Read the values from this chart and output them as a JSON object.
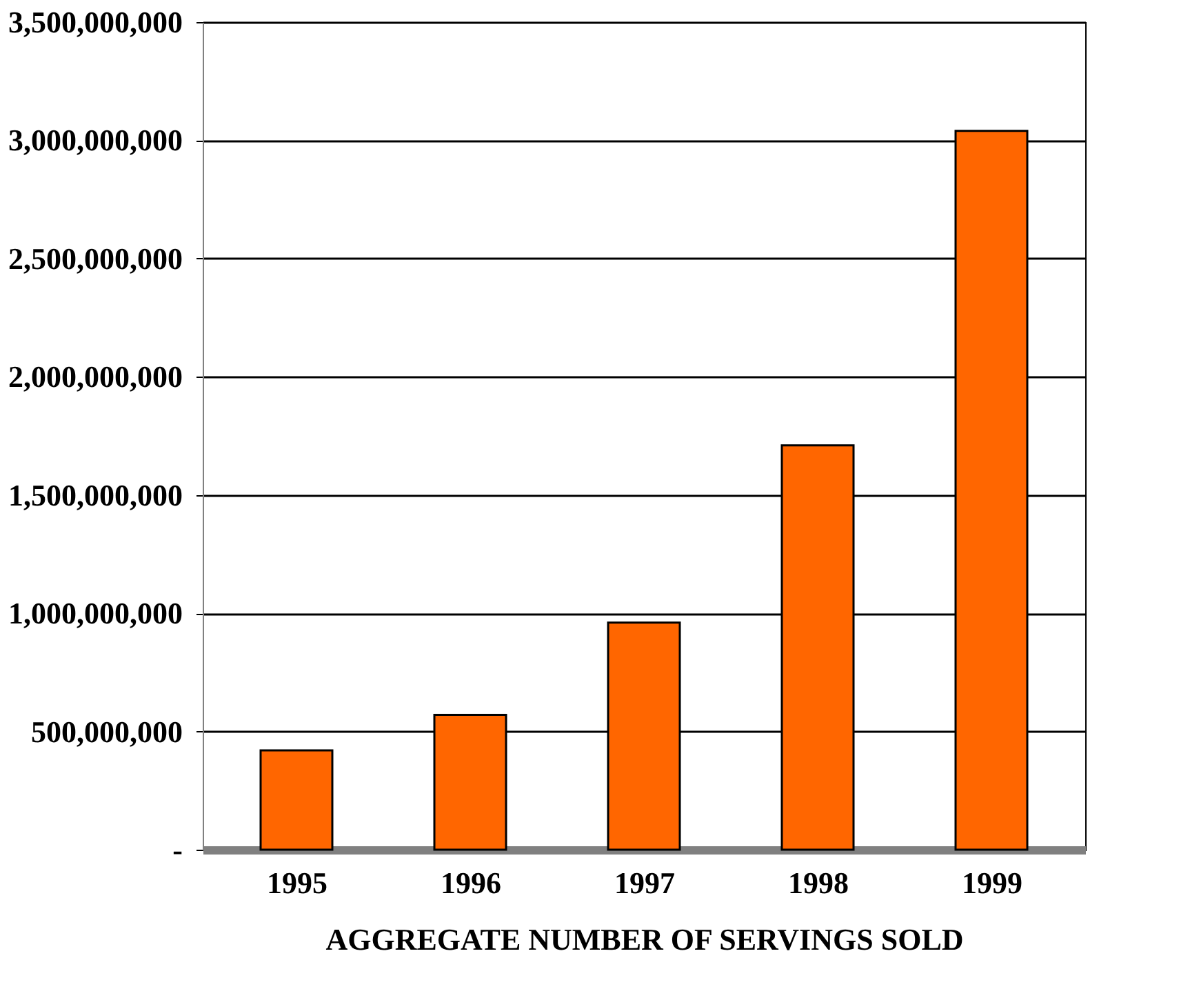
{
  "chart_data": {
    "type": "bar",
    "xlabel": "AGGREGATE NUMBER OF SERVINGS SOLD",
    "categories": [
      "1995",
      "1996",
      "1997",
      "1998",
      "1999"
    ],
    "values": [
      420000000,
      570000000,
      960000000,
      1710000000,
      3040000000
    ],
    "color": "#ff6600",
    "ylim": [
      0,
      3500000000
    ],
    "yticks": [
      {
        "value": 0,
        "label": "-"
      },
      {
        "value": 500000000,
        "label": "500,000,000"
      },
      {
        "value": 1000000000,
        "label": "1,000,000,000"
      },
      {
        "value": 1500000000,
        "label": "1,500,000,000"
      },
      {
        "value": 2000000000,
        "label": "2,000,000,000"
      },
      {
        "value": 2500000000,
        "label": "2,500,000,000"
      },
      {
        "value": 3000000000,
        "label": "3,000,000,000"
      },
      {
        "value": 3500000000,
        "label": "3,500,000,000"
      }
    ],
    "grid": "y"
  }
}
